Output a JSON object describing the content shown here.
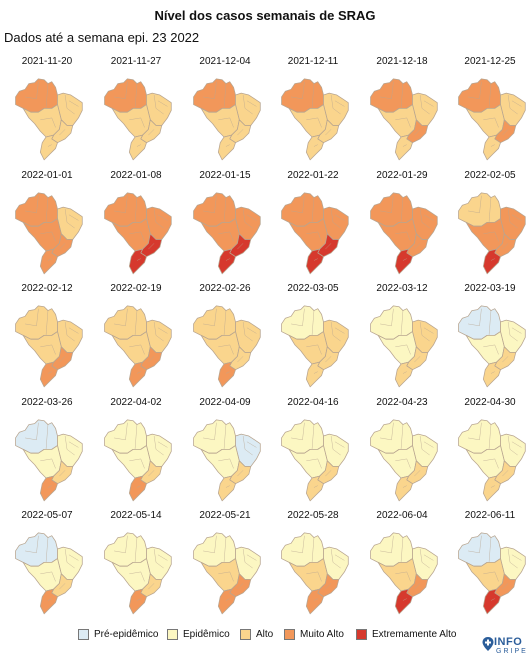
{
  "title": "Nível dos casos semanais de SRAG",
  "subtitle": "Dados até a semana epi. 23 2022",
  "colors": {
    "pre": "#dcebf4",
    "epi": "#fcf7c2",
    "alto": "#fad58d",
    "muito": "#f2975a",
    "extremo": "#d6392d",
    "border": "#b8a590"
  },
  "legend": [
    {
      "key": "pre",
      "label": "Pré-epidêmico"
    },
    {
      "key": "epi",
      "label": "Epidêmico"
    },
    {
      "key": "alto",
      "label": "Alto"
    },
    {
      "key": "muito",
      "label": "Muito Alto"
    },
    {
      "key": "extremo",
      "label": "Extremamente Alto"
    }
  ],
  "logo": {
    "text": "INFO",
    "sub": "GRIPE"
  },
  "panels": [
    {
      "week": "2021-11-20",
      "level": {
        "north": "muito",
        "northeast": "alto",
        "centerwest": "alto",
        "southeast": "alto",
        "south": "alto"
      }
    },
    {
      "week": "2021-11-27",
      "level": {
        "north": "muito",
        "northeast": "alto",
        "centerwest": "alto",
        "southeast": "alto",
        "south": "alto"
      }
    },
    {
      "week": "2021-12-04",
      "level": {
        "north": "muito",
        "northeast": "alto",
        "centerwest": "alto",
        "southeast": "alto",
        "south": "alto"
      }
    },
    {
      "week": "2021-12-11",
      "level": {
        "north": "muito",
        "northeast": "alto",
        "centerwest": "alto",
        "southeast": "alto",
        "south": "alto"
      }
    },
    {
      "week": "2021-12-18",
      "level": {
        "north": "muito",
        "northeast": "alto",
        "centerwest": "alto",
        "southeast": "muito",
        "south": "alto"
      }
    },
    {
      "week": "2021-12-25",
      "level": {
        "north": "muito",
        "northeast": "alto",
        "centerwest": "alto",
        "southeast": "muito",
        "south": "alto"
      }
    },
    {
      "week": "2022-01-01",
      "level": {
        "north": "muito",
        "northeast": "alto",
        "centerwest": "muito",
        "southeast": "muito",
        "south": "muito"
      }
    },
    {
      "week": "2022-01-08",
      "level": {
        "north": "muito",
        "northeast": "muito",
        "centerwest": "muito",
        "southeast": "extremo",
        "south": "extremo"
      }
    },
    {
      "week": "2022-01-15",
      "level": {
        "north": "muito",
        "northeast": "muito",
        "centerwest": "muito",
        "southeast": "extremo",
        "south": "extremo"
      }
    },
    {
      "week": "2022-01-22",
      "level": {
        "north": "muito",
        "northeast": "muito",
        "centerwest": "muito",
        "southeast": "extremo",
        "south": "extremo"
      }
    },
    {
      "week": "2022-01-29",
      "level": {
        "north": "muito",
        "northeast": "muito",
        "centerwest": "muito",
        "southeast": "muito",
        "south": "extremo"
      }
    },
    {
      "week": "2022-02-05",
      "level": {
        "north": "alto",
        "northeast": "muito",
        "centerwest": "muito",
        "southeast": "muito",
        "south": "extremo"
      }
    },
    {
      "week": "2022-02-12",
      "level": {
        "north": "alto",
        "northeast": "alto",
        "centerwest": "alto",
        "southeast": "muito",
        "south": "muito"
      }
    },
    {
      "week": "2022-02-19",
      "level": {
        "north": "alto",
        "northeast": "alto",
        "centerwest": "alto",
        "southeast": "muito",
        "south": "muito"
      }
    },
    {
      "week": "2022-02-26",
      "level": {
        "north": "alto",
        "northeast": "alto",
        "centerwest": "alto",
        "southeast": "alto",
        "south": "muito"
      }
    },
    {
      "week": "2022-03-05",
      "level": {
        "north": "epi",
        "northeast": "alto",
        "centerwest": "alto",
        "southeast": "alto",
        "south": "alto"
      }
    },
    {
      "week": "2022-03-12",
      "level": {
        "north": "epi",
        "northeast": "alto",
        "centerwest": "epi",
        "southeast": "alto",
        "south": "alto"
      }
    },
    {
      "week": "2022-03-19",
      "level": {
        "north": "pre",
        "northeast": "epi",
        "centerwest": "epi",
        "southeast": "alto",
        "south": "alto"
      }
    },
    {
      "week": "2022-03-26",
      "level": {
        "north": "pre",
        "northeast": "epi",
        "centerwest": "epi",
        "southeast": "alto",
        "south": "muito"
      }
    },
    {
      "week": "2022-04-02",
      "level": {
        "north": "epi",
        "northeast": "epi",
        "centerwest": "epi",
        "southeast": "alto",
        "south": "muito"
      }
    },
    {
      "week": "2022-04-09",
      "level": {
        "north": "epi",
        "northeast": "pre",
        "centerwest": "epi",
        "southeast": "alto",
        "south": "alto"
      }
    },
    {
      "week": "2022-04-16",
      "level": {
        "north": "epi",
        "northeast": "epi",
        "centerwest": "epi",
        "southeast": "alto",
        "south": "alto"
      }
    },
    {
      "week": "2022-04-23",
      "level": {
        "north": "epi",
        "northeast": "epi",
        "centerwest": "epi",
        "southeast": "alto",
        "south": "alto"
      }
    },
    {
      "week": "2022-04-30",
      "level": {
        "north": "epi",
        "northeast": "epi",
        "centerwest": "epi",
        "southeast": "alto",
        "south": "alto"
      }
    },
    {
      "week": "2022-05-07",
      "level": {
        "north": "pre",
        "northeast": "epi",
        "centerwest": "epi",
        "southeast": "alto",
        "south": "muito"
      }
    },
    {
      "week": "2022-05-14",
      "level": {
        "north": "epi",
        "northeast": "epi",
        "centerwest": "epi",
        "southeast": "alto",
        "south": "muito"
      }
    },
    {
      "week": "2022-05-21",
      "level": {
        "north": "epi",
        "northeast": "epi",
        "centerwest": "alto",
        "southeast": "muito",
        "south": "muito"
      }
    },
    {
      "week": "2022-05-28",
      "level": {
        "north": "epi",
        "northeast": "epi",
        "centerwest": "alto",
        "southeast": "muito",
        "south": "muito"
      }
    },
    {
      "week": "2022-06-04",
      "level": {
        "north": "epi",
        "northeast": "epi",
        "centerwest": "alto",
        "southeast": "muito",
        "south": "extremo"
      }
    },
    {
      "week": "2022-06-11",
      "level": {
        "north": "pre",
        "northeast": "epi",
        "centerwest": "alto",
        "southeast": "muito",
        "south": "extremo"
      }
    }
  ]
}
